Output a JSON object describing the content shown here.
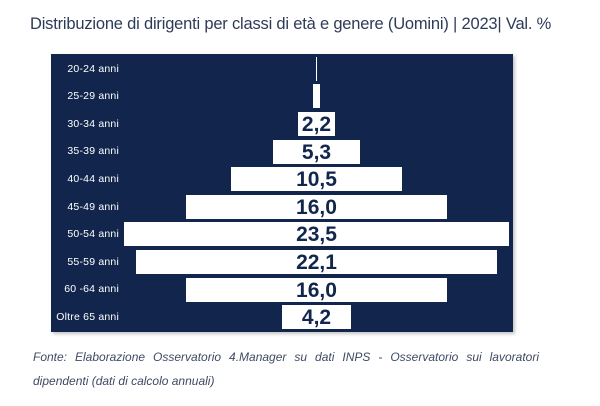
{
  "title": "Distribuzione di dirigenti per classi di età e genere (Uomini) | 2023| Val. %",
  "colors": {
    "panel_navy": "#12264d",
    "bar_white": "#ffffff",
    "value_text_navy": "#12264d",
    "title_text": "#2e3b56",
    "footer_text": "#3e4a63",
    "row_label_white": "#ffffff"
  },
  "chart_data": {
    "type": "bar",
    "orientation": "horizontal-centered-pyramid",
    "title": "Distribuzione di dirigenti per classi di età e genere (Uomini) | 2023| Val. %",
    "xlabel": "",
    "ylabel": "",
    "unit": "%",
    "axis_max": 24,
    "grid": false,
    "legend": false,
    "categories": [
      "20-24 anni",
      "25-29 anni",
      "30-34 anni",
      "35-39 anni",
      "40-44 anni",
      "45-49 anni",
      "50-54 anni",
      "55-59 anni",
      "60 -64 anni",
      "Oltre 65 anni"
    ],
    "values": [
      0.1,
      0.4,
      2.2,
      5.3,
      10.5,
      16.0,
      23.5,
      22.1,
      16.0,
      4.2
    ],
    "value_labels": [
      "",
      "",
      "2,2",
      "5,3",
      "10,5",
      "16,0",
      "23,5",
      "22,1",
      "16,0",
      "4,2"
    ],
    "bars_color": "#ffffff",
    "background_color": "#12264d",
    "labels_inside_bars": true
  },
  "footer": {
    "line1": "Fonte: Elaborazione Osservatorio 4.Manager su dati INPS - Osservatorio sui lavoratori",
    "line2": "dipendenti (dati di calcolo annuali)"
  }
}
